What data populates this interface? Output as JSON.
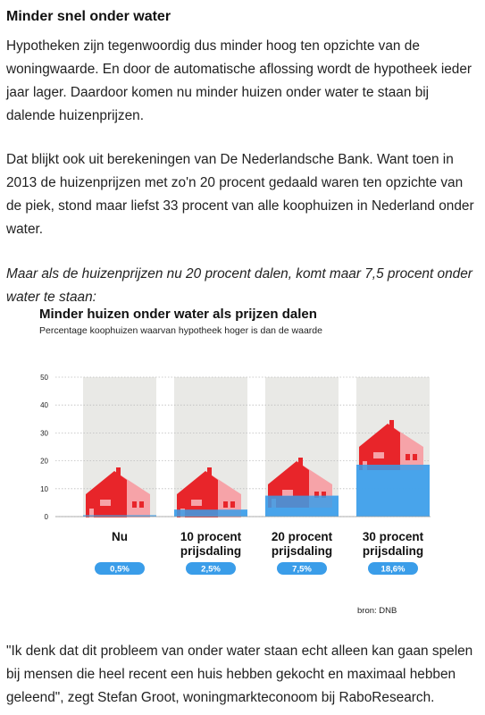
{
  "article": {
    "heading": "Minder snel onder water",
    "paragraph_1": "Hypotheken zijn tegenwoordig dus minder hoog ten opzichte van de woningwaarde. En door de automatische aflossing wordt de hypotheek ieder jaar lager. Daardoor komen nu minder huizen onder water te staan bij dalende huizenprijzen.",
    "paragraph_2": "Dat blijkt ook uit berekeningen van De Nederlandsche Bank. Want toen in 2013 de huizenprijzen met zo'n 20 procent gedaald waren ten opzichte van de piek, stond maar liefst 33 procent van alle koophuizen in Nederland onder water.",
    "paragraph_3": "Maar als de huizenprijzen nu 20 procent dalen, komt maar 7,5 procent onder water te staan:",
    "paragraph_4": "\"Ik denk dat dit probleem van onder water staan echt alleen kan gaan spelen bij mensen die heel recent een huis hebben gekocht en maximaal hebben geleend\", zegt Stefan Groot, woningmarkteconoom bij RaboResearch."
  },
  "chart_data": {
    "type": "bar",
    "title": "Minder huizen onder water als prijzen dalen",
    "subtitle": "Percentage koophuizen waarvan hypotheek hoger is dan de waarde",
    "categories": [
      [
        "Nu"
      ],
      [
        "10 procent",
        "prijsdaling"
      ],
      [
        "20 procent",
        "prijsdaling"
      ],
      [
        "30 procent",
        "prijsdaling"
      ]
    ],
    "values": [
      0.5,
      2.5,
      7.5,
      18.6
    ],
    "value_labels": [
      "0,5%",
      "2,5%",
      "7,5%",
      "18,6%"
    ],
    "yticks": [
      "0",
      "10",
      "20",
      "30",
      "40",
      "50"
    ],
    "ylim": [
      0,
      50
    ],
    "grid": true,
    "source": "bron: DNB",
    "colors": {
      "water": "#3a9de9",
      "water_light": "#8ec8f4",
      "house_red": "#e8252a",
      "house_pink": "#f6a3a8",
      "column_bg": "#e9e9e6",
      "badge": "#3a9de9",
      "grid": "#bdbdbd"
    }
  }
}
